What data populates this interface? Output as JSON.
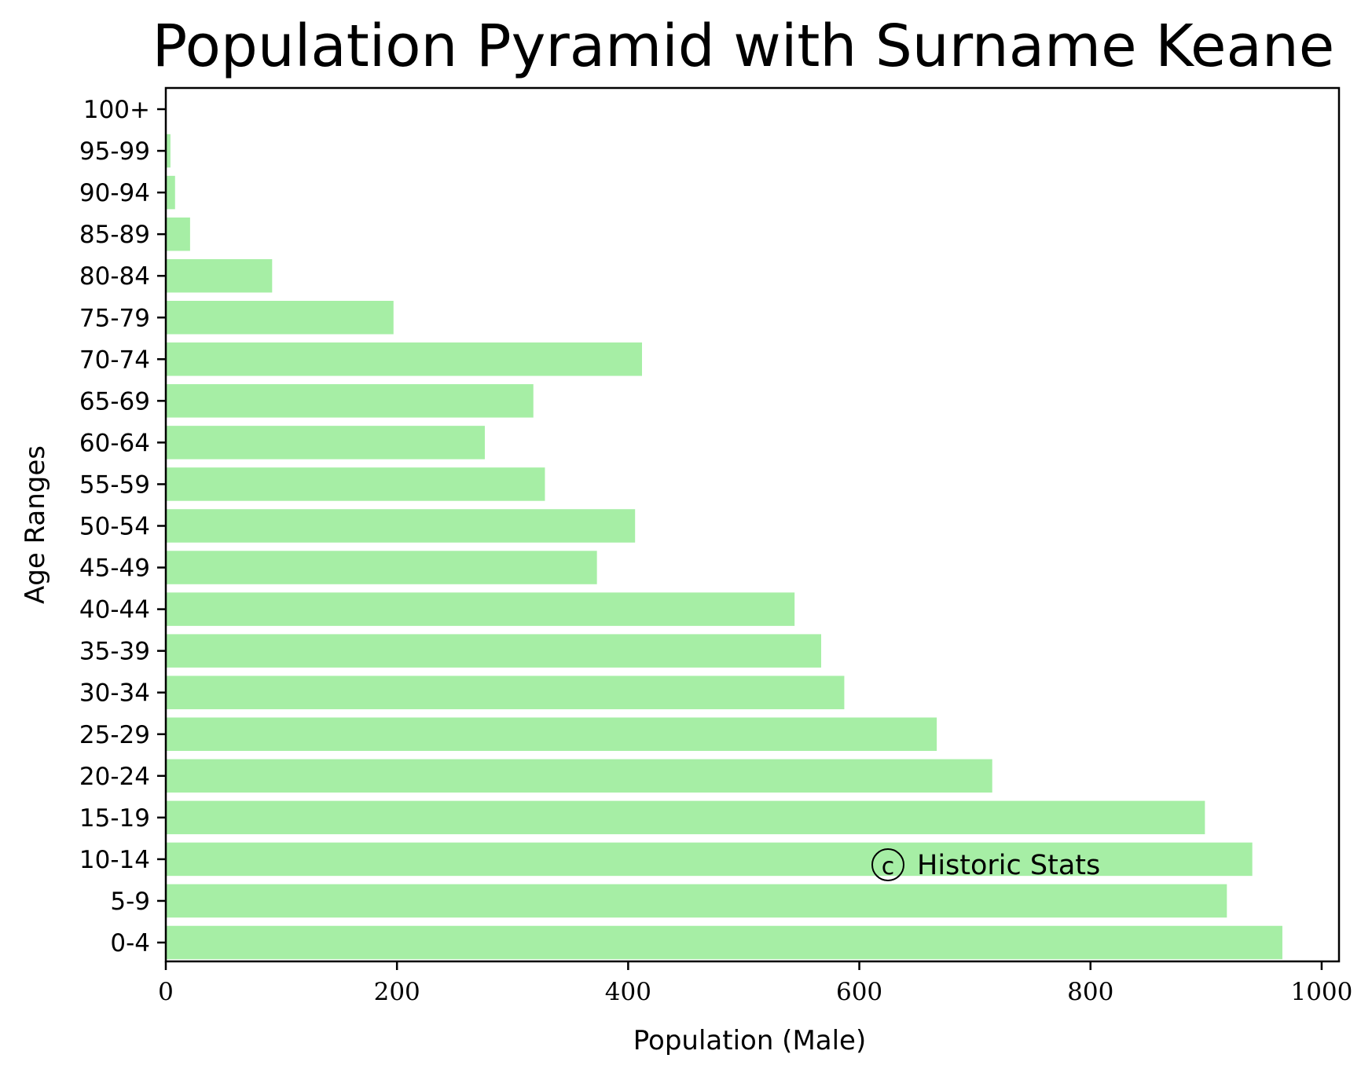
{
  "chart_data": {
    "type": "bar",
    "orientation": "horizontal",
    "title": "Population Pyramid with Surname Keane",
    "xlabel": "Population (Male)",
    "ylabel": "Age Ranges",
    "categories": [
      "0-4",
      "5-9",
      "10-14",
      "15-19",
      "20-24",
      "25-29",
      "30-34",
      "35-39",
      "40-44",
      "45-49",
      "50-54",
      "55-59",
      "60-64",
      "65-69",
      "70-74",
      "75-79",
      "80-84",
      "85-89",
      "90-94",
      "95-99",
      "100+"
    ],
    "values": [
      966,
      918,
      940,
      899,
      715,
      667,
      587,
      567,
      544,
      373,
      406,
      328,
      276,
      318,
      412,
      197,
      92,
      21,
      8,
      4,
      0
    ],
    "xlim": [
      0,
      1015
    ],
    "xticks": [
      "0",
      "200",
      "400",
      "600",
      "800",
      "1000"
    ],
    "xtick_values": [
      0,
      200,
      400,
      600,
      800,
      1000
    ],
    "bar_color": "#a6eea5",
    "grid": false,
    "annotation": "Historic Stats",
    "annotation_symbol": "c"
  }
}
